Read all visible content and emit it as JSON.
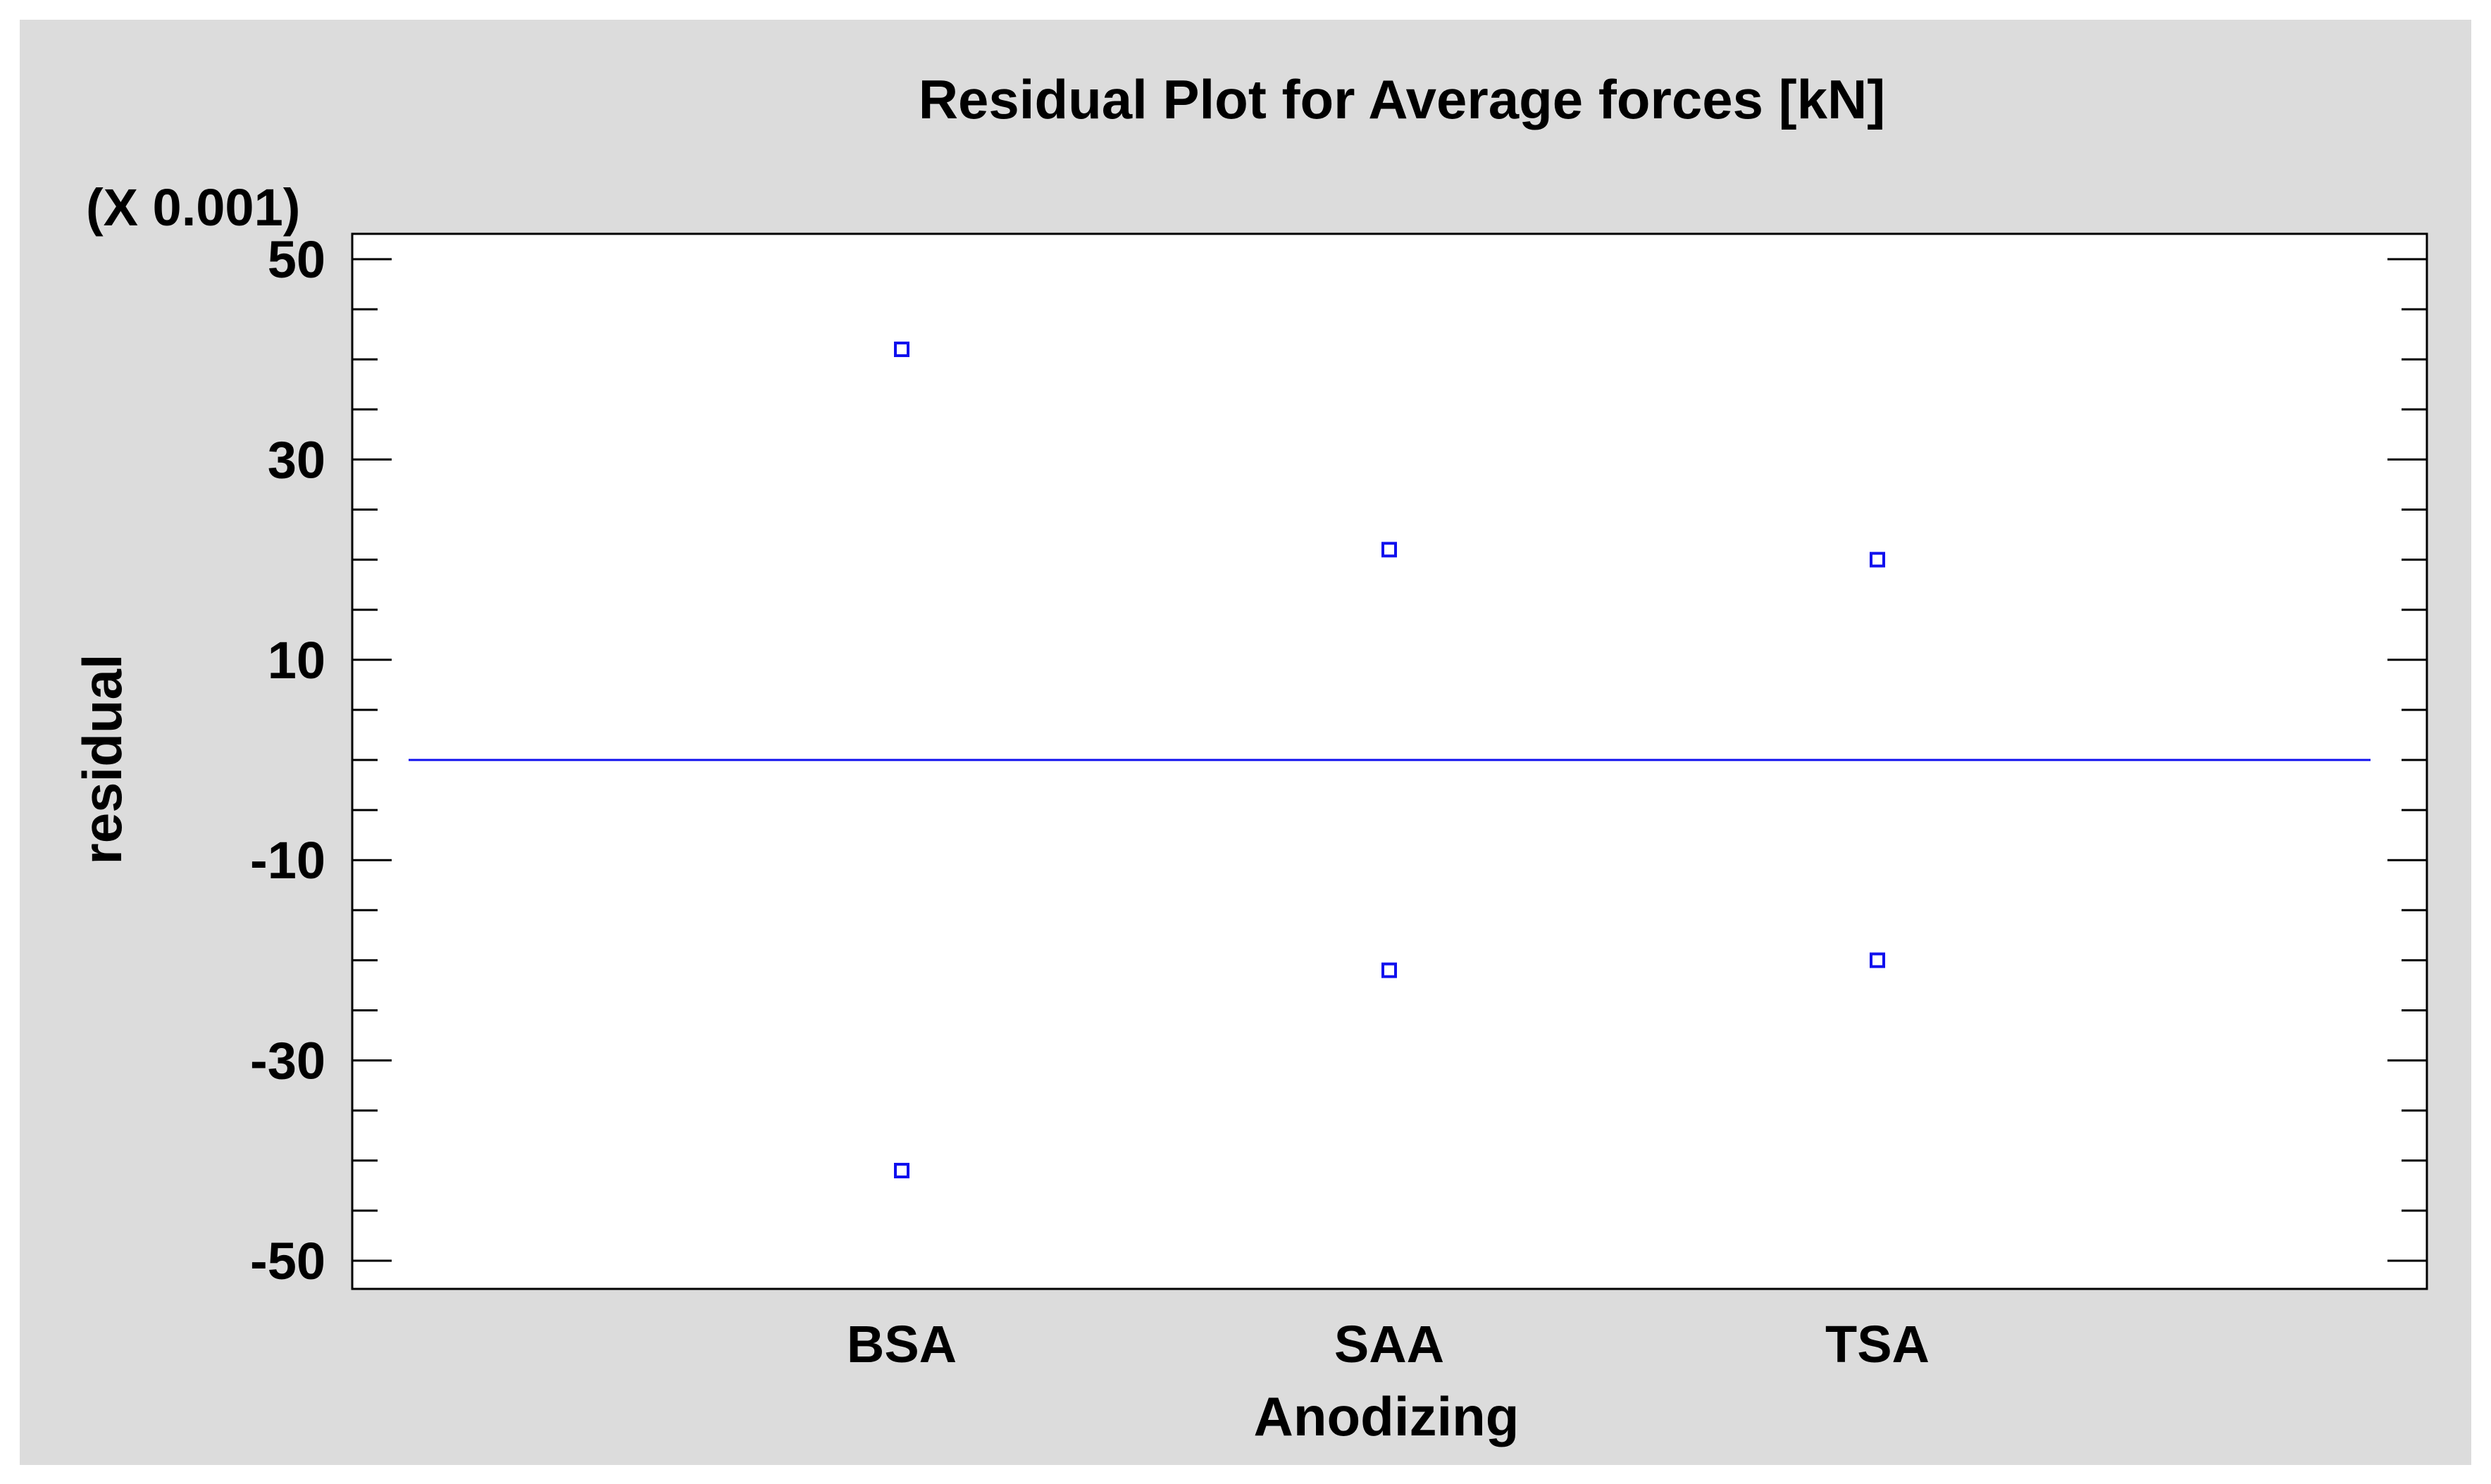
{
  "chart_data": {
    "type": "scatter",
    "title": "Residual Plot for Average forces [kN]",
    "xlabel": "Anodizing",
    "ylabel": "residual",
    "scale_note": "(X 0.001)",
    "categories": [
      "BSA",
      "SAA",
      "TSA"
    ],
    "ylim": [
      -55,
      50
    ],
    "y_ticks": [
      50,
      30,
      10,
      -10,
      -30,
      -50
    ],
    "y_tick_labels": [
      "50",
      "30",
      "10",
      "-10",
      "-30",
      "-50"
    ],
    "points": [
      {
        "category": "BSA",
        "y": 41
      },
      {
        "category": "BSA",
        "y": -41
      },
      {
        "category": "SAA",
        "y": 21
      },
      {
        "category": "SAA",
        "y": -21
      },
      {
        "category": "TSA",
        "y": 20
      },
      {
        "category": "TSA",
        "y": -20
      }
    ],
    "reference_line": 0,
    "grid": false
  },
  "colors": {
    "background": "#dcdcdc",
    "plot_background": "#ffffff",
    "marker": "#1010ee",
    "reference_line": "#1010ee",
    "axis": "#000000"
  }
}
